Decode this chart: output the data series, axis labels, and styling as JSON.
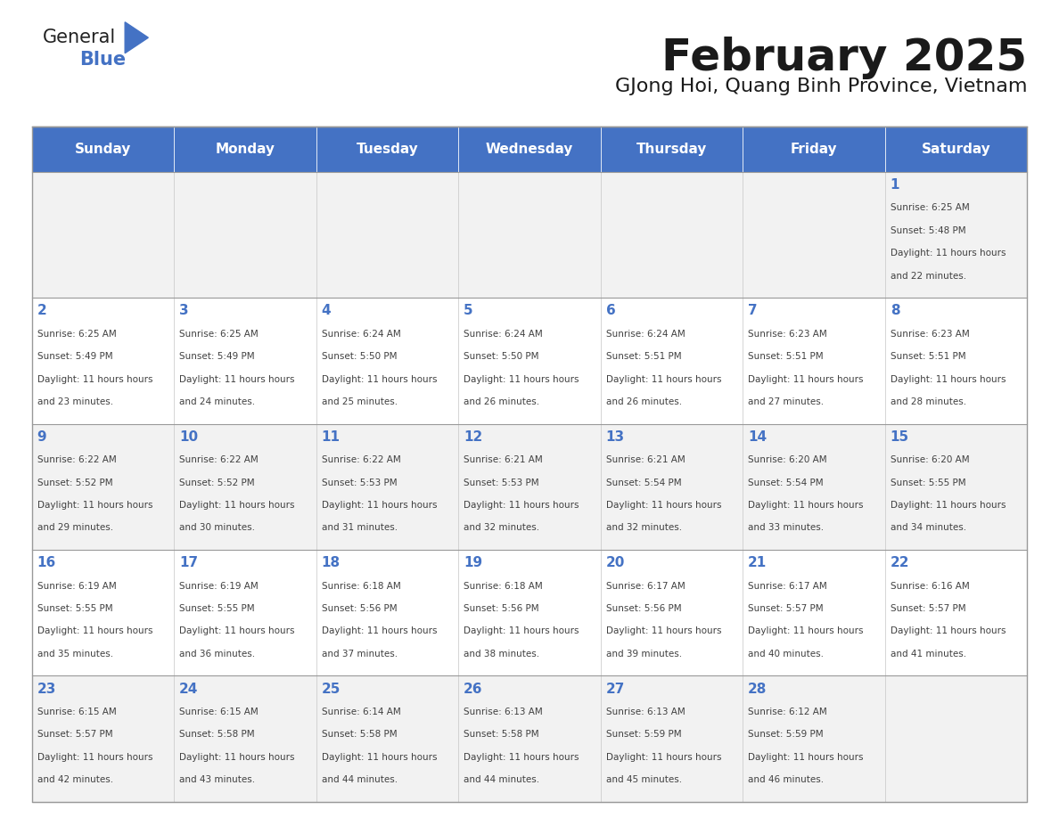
{
  "title": "February 2025",
  "subtitle": "GJong Hoi, Quang Binh Province, Vietnam",
  "header_color": "#4472C4",
  "header_text_color": "#FFFFFF",
  "header_days": [
    "Sunday",
    "Monday",
    "Tuesday",
    "Wednesday",
    "Thursday",
    "Friday",
    "Saturday"
  ],
  "bg_color": "#FFFFFF",
  "cell_bg_even": "#F2F2F2",
  "cell_bg_odd": "#FFFFFF",
  "day_number_color": "#4472C4",
  "text_color": "#404040",
  "grid_color": "#AAAAAA",
  "days": [
    {
      "day": 1,
      "col": 6,
      "row": 0,
      "sunrise": "6:25 AM",
      "sunset": "5:48 PM",
      "daylight": "11 hours and 22 minutes."
    },
    {
      "day": 2,
      "col": 0,
      "row": 1,
      "sunrise": "6:25 AM",
      "sunset": "5:49 PM",
      "daylight": "11 hours and 23 minutes."
    },
    {
      "day": 3,
      "col": 1,
      "row": 1,
      "sunrise": "6:25 AM",
      "sunset": "5:49 PM",
      "daylight": "11 hours and 24 minutes."
    },
    {
      "day": 4,
      "col": 2,
      "row": 1,
      "sunrise": "6:24 AM",
      "sunset": "5:50 PM",
      "daylight": "11 hours and 25 minutes."
    },
    {
      "day": 5,
      "col": 3,
      "row": 1,
      "sunrise": "6:24 AM",
      "sunset": "5:50 PM",
      "daylight": "11 hours and 26 minutes."
    },
    {
      "day": 6,
      "col": 4,
      "row": 1,
      "sunrise": "6:24 AM",
      "sunset": "5:51 PM",
      "daylight": "11 hours and 26 minutes."
    },
    {
      "day": 7,
      "col": 5,
      "row": 1,
      "sunrise": "6:23 AM",
      "sunset": "5:51 PM",
      "daylight": "11 hours and 27 minutes."
    },
    {
      "day": 8,
      "col": 6,
      "row": 1,
      "sunrise": "6:23 AM",
      "sunset": "5:51 PM",
      "daylight": "11 hours and 28 minutes."
    },
    {
      "day": 9,
      "col": 0,
      "row": 2,
      "sunrise": "6:22 AM",
      "sunset": "5:52 PM",
      "daylight": "11 hours and 29 minutes."
    },
    {
      "day": 10,
      "col": 1,
      "row": 2,
      "sunrise": "6:22 AM",
      "sunset": "5:52 PM",
      "daylight": "11 hours and 30 minutes."
    },
    {
      "day": 11,
      "col": 2,
      "row": 2,
      "sunrise": "6:22 AM",
      "sunset": "5:53 PM",
      "daylight": "11 hours and 31 minutes."
    },
    {
      "day": 12,
      "col": 3,
      "row": 2,
      "sunrise": "6:21 AM",
      "sunset": "5:53 PM",
      "daylight": "11 hours and 32 minutes."
    },
    {
      "day": 13,
      "col": 4,
      "row": 2,
      "sunrise": "6:21 AM",
      "sunset": "5:54 PM",
      "daylight": "11 hours and 32 minutes."
    },
    {
      "day": 14,
      "col": 5,
      "row": 2,
      "sunrise": "6:20 AM",
      "sunset": "5:54 PM",
      "daylight": "11 hours and 33 minutes."
    },
    {
      "day": 15,
      "col": 6,
      "row": 2,
      "sunrise": "6:20 AM",
      "sunset": "5:55 PM",
      "daylight": "11 hours and 34 minutes."
    },
    {
      "day": 16,
      "col": 0,
      "row": 3,
      "sunrise": "6:19 AM",
      "sunset": "5:55 PM",
      "daylight": "11 hours and 35 minutes."
    },
    {
      "day": 17,
      "col": 1,
      "row": 3,
      "sunrise": "6:19 AM",
      "sunset": "5:55 PM",
      "daylight": "11 hours and 36 minutes."
    },
    {
      "day": 18,
      "col": 2,
      "row": 3,
      "sunrise": "6:18 AM",
      "sunset": "5:56 PM",
      "daylight": "11 hours and 37 minutes."
    },
    {
      "day": 19,
      "col": 3,
      "row": 3,
      "sunrise": "6:18 AM",
      "sunset": "5:56 PM",
      "daylight": "11 hours and 38 minutes."
    },
    {
      "day": 20,
      "col": 4,
      "row": 3,
      "sunrise": "6:17 AM",
      "sunset": "5:56 PM",
      "daylight": "11 hours and 39 minutes."
    },
    {
      "day": 21,
      "col": 5,
      "row": 3,
      "sunrise": "6:17 AM",
      "sunset": "5:57 PM",
      "daylight": "11 hours and 40 minutes."
    },
    {
      "day": 22,
      "col": 6,
      "row": 3,
      "sunrise": "6:16 AM",
      "sunset": "5:57 PM",
      "daylight": "11 hours and 41 minutes."
    },
    {
      "day": 23,
      "col": 0,
      "row": 4,
      "sunrise": "6:15 AM",
      "sunset": "5:57 PM",
      "daylight": "11 hours and 42 minutes."
    },
    {
      "day": 24,
      "col": 1,
      "row": 4,
      "sunrise": "6:15 AM",
      "sunset": "5:58 PM",
      "daylight": "11 hours and 43 minutes."
    },
    {
      "day": 25,
      "col": 2,
      "row": 4,
      "sunrise": "6:14 AM",
      "sunset": "5:58 PM",
      "daylight": "11 hours and 44 minutes."
    },
    {
      "day": 26,
      "col": 3,
      "row": 4,
      "sunrise": "6:13 AM",
      "sunset": "5:58 PM",
      "daylight": "11 hours and 44 minutes."
    },
    {
      "day": 27,
      "col": 4,
      "row": 4,
      "sunrise": "6:13 AM",
      "sunset": "5:59 PM",
      "daylight": "11 hours and 45 minutes."
    },
    {
      "day": 28,
      "col": 5,
      "row": 4,
      "sunrise": "6:12 AM",
      "sunset": "5:59 PM",
      "daylight": "11 hours and 46 minutes."
    }
  ],
  "num_rows": 5,
  "logo_general_color": "#222222",
  "logo_blue_color": "#4472C4"
}
